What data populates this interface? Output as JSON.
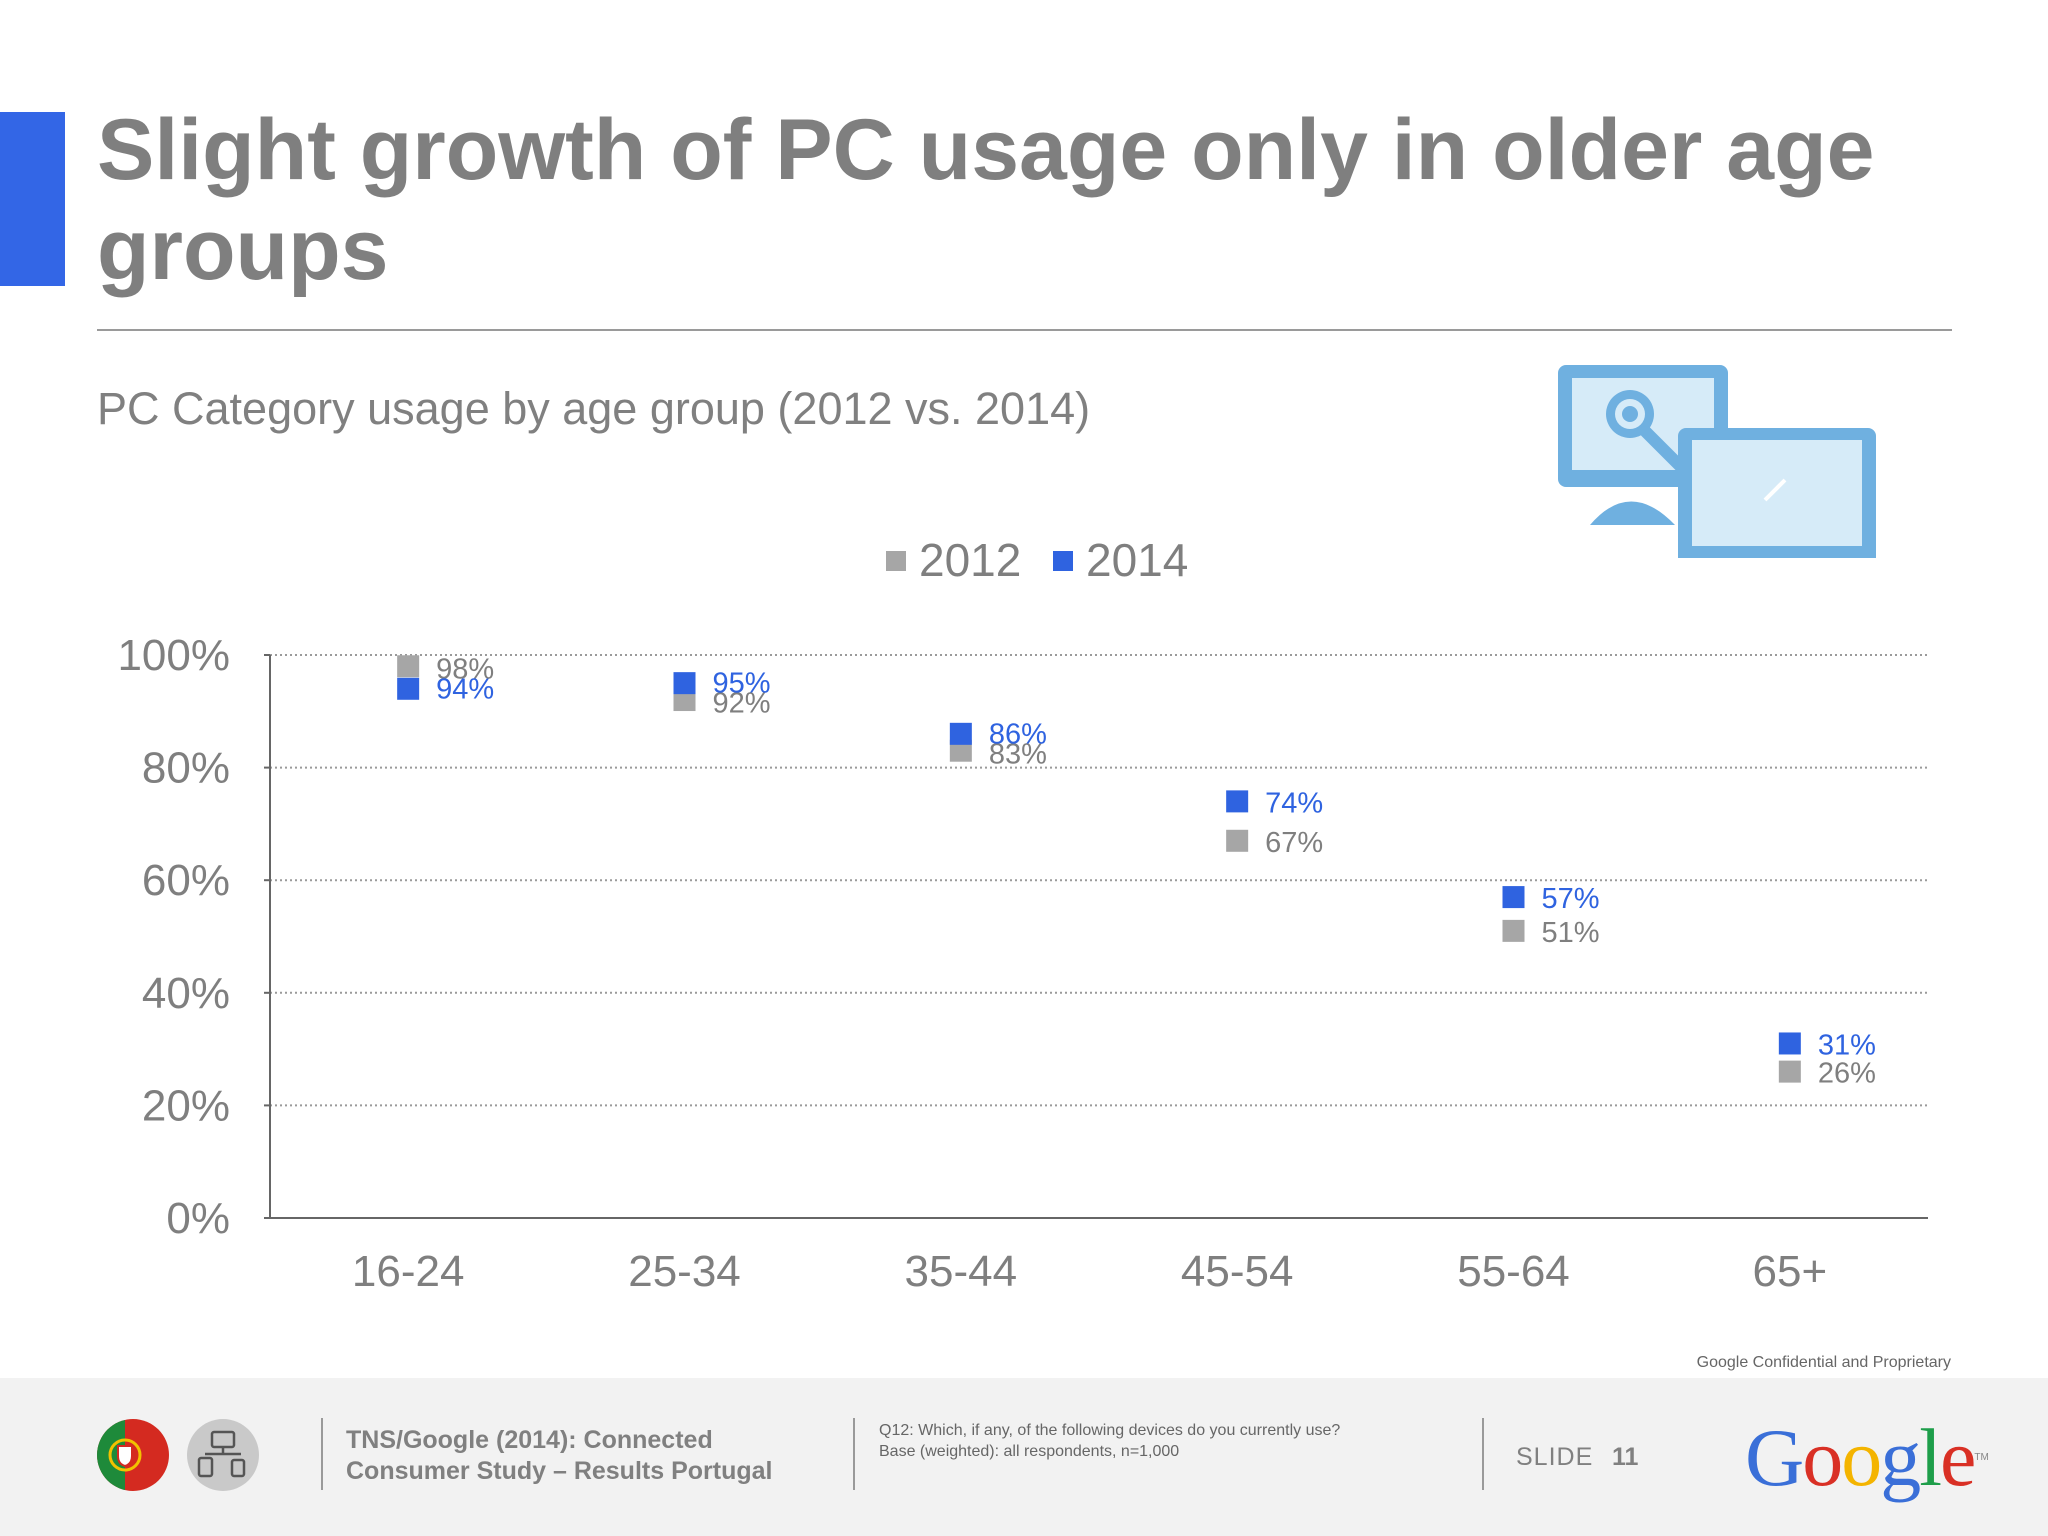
{
  "slide": {
    "title": "Slight growth of PC usage only in older age groups",
    "subtitle": "PC Category usage by age group (2012 vs. 2014)",
    "confidential": "Google Confidential and Proprietary",
    "accent_color": "#3366e6"
  },
  "footer": {
    "source_line1": "TNS/Google (2014): Connected",
    "source_line2": "Consumer Study – Results Portugal",
    "question_line1": "Q12: Which, if any, of the following devices do you currently use?",
    "question_line2": "Base (weighted): all respondents, n=1,000",
    "slide_label": "SLIDE",
    "slide_number": "11",
    "logo_text": "Google",
    "logo_tm": "TM",
    "logo_colors": [
      "#3a6fd8",
      "#d93025",
      "#f4b400",
      "#3a6fd8",
      "#1e9e4a",
      "#d93025"
    ],
    "icons": [
      "portugal-flag-icon",
      "devices-icon"
    ]
  },
  "illustration": {
    "icon": "pc-laptop-search-icon"
  },
  "chart_data": {
    "type": "scatter",
    "categories": [
      "16-24",
      "25-34",
      "35-44",
      "45-54",
      "55-64",
      "65+"
    ],
    "series": [
      {
        "name": "2012",
        "values": [
          98,
          92,
          83,
          67,
          51,
          26
        ],
        "labels": [
          "98%",
          "92%",
          "83%",
          "67%",
          "51%",
          "26%"
        ],
        "color": "#a6a6a6",
        "label_color": "#7f7f7f"
      },
      {
        "name": "2014",
        "values": [
          94,
          95,
          86,
          74,
          57,
          31
        ],
        "labels": [
          "94%",
          "95%",
          "86%",
          "74%",
          "57%",
          "31%"
        ],
        "color": "#2f63e0",
        "label_color": "#2f63e0"
      }
    ],
    "y_ticks": [
      "0%",
      "20%",
      "40%",
      "60%",
      "80%",
      "100%"
    ],
    "ylim": [
      0,
      100
    ],
    "grid": true,
    "legend_position": "top-center",
    "xlabel": "",
    "ylabel": ""
  }
}
